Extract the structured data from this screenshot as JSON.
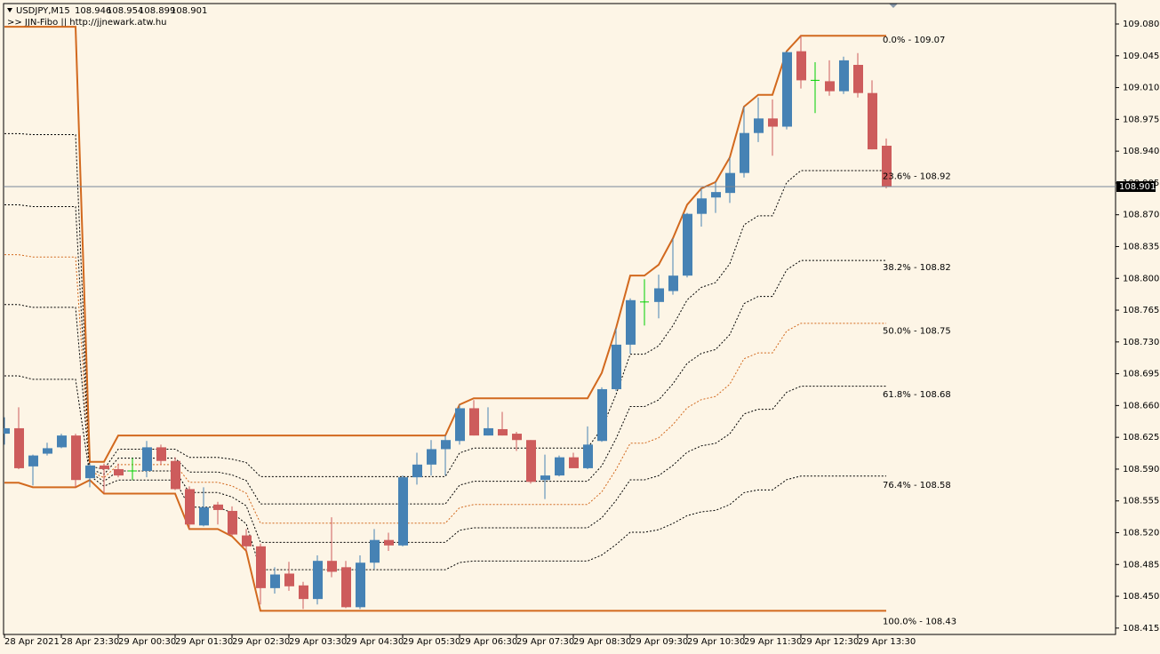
{
  "chart_data": {
    "type": "candlestick",
    "title": "USDJPY,M15",
    "subtitle": ">> JJN-Fibo || http://jjnewark.atw.hu",
    "categories": [
      "28 Apr 2021",
      null,
      null,
      null,
      "28 Apr 23:30",
      null,
      null,
      null,
      "29 Apr 00:30",
      null,
      null,
      null,
      "29 Apr 01:30",
      null,
      null,
      null,
      "29 Apr 02:30",
      null,
      null,
      null,
      "29 Apr 03:30",
      null,
      null,
      null,
      "29 Apr 04:30",
      null,
      null,
      null,
      "29 Apr 05:30",
      null,
      null,
      null,
      "29 Apr 06:30",
      null,
      null,
      null,
      "29 Apr 07:30",
      null,
      null,
      null,
      "29 Apr 08:30",
      null,
      null,
      null,
      "29 Apr 09:30",
      null,
      null,
      null,
      "29 Apr 10:30",
      null,
      null,
      null,
      "29 Apr 11:30",
      null,
      null,
      null,
      "29 Apr 12:30",
      null,
      null,
      null,
      "29 Apr 13:30",
      null,
      null
    ],
    "open": [
      108.629,
      108.635,
      108.593,
      108.607,
      108.614,
      108.627,
      108.58,
      108.594,
      108.59,
      108.588,
      108.588,
      108.614,
      108.599,
      108.568,
      108.528,
      108.551,
      108.544,
      108.517,
      108.505,
      108.459,
      108.475,
      108.462,
      108.447,
      108.489,
      108.482,
      108.438,
      108.487,
      108.512,
      108.506,
      108.581,
      108.595,
      108.612,
      108.621,
      108.657,
      108.627,
      108.634,
      108.629,
      108.622,
      108.578,
      108.583,
      108.603,
      108.591,
      108.621,
      108.678,
      108.727,
      108.774,
      108.774,
      108.786,
      108.803,
      108.871,
      108.889,
      108.894,
      108.916,
      108.96,
      108.976,
      108.967,
      109.05,
      109.018,
      109.017,
      109.006,
      109.035,
      109.004,
      108.946
    ],
    "high": [
      108.647,
      108.658,
      108.606,
      108.619,
      108.629,
      108.629,
      108.596,
      108.596,
      108.596,
      108.602,
      108.621,
      108.617,
      108.603,
      108.571,
      108.57,
      108.554,
      108.549,
      108.524,
      108.508,
      108.482,
      108.488,
      108.466,
      108.495,
      108.537,
      108.489,
      108.495,
      108.524,
      108.52,
      108.583,
      108.608,
      108.622,
      108.627,
      108.661,
      108.666,
      108.658,
      108.653,
      108.631,
      108.622,
      108.606,
      108.605,
      108.608,
      108.637,
      108.68,
      108.745,
      108.778,
      108.799,
      108.804,
      108.844,
      108.872,
      108.899,
      108.906,
      108.933,
      108.989,
      108.999,
      108.997,
      109.05,
      109.067,
      109.038,
      109.04,
      109.044,
      109.048,
      109.018,
      108.954
    ],
    "low": [
      108.617,
      108.59,
      108.572,
      108.605,
      108.613,
      108.57,
      108.57,
      108.564,
      108.581,
      108.578,
      108.581,
      108.595,
      108.567,
      108.524,
      108.527,
      108.529,
      108.516,
      108.5,
      108.441,
      108.453,
      108.456,
      108.436,
      108.441,
      108.471,
      108.437,
      108.436,
      108.48,
      108.5,
      108.505,
      108.573,
      108.583,
      108.583,
      108.617,
      108.627,
      108.627,
      108.627,
      108.61,
      108.574,
      108.557,
      108.582,
      108.595,
      108.59,
      108.62,
      108.676,
      108.717,
      108.748,
      108.756,
      108.782,
      108.801,
      108.857,
      108.872,
      108.883,
      108.911,
      108.95,
      108.935,
      108.964,
      109.009,
      108.982,
      109.001,
      109.003,
      108.999,
      108.942,
      108.899
    ],
    "close": [
      108.635,
      108.591,
      108.605,
      108.613,
      108.627,
      108.578,
      108.594,
      108.59,
      108.583,
      108.588,
      108.614,
      108.599,
      108.568,
      108.529,
      108.548,
      108.545,
      108.518,
      108.505,
      108.459,
      108.474,
      108.461,
      108.447,
      108.489,
      108.477,
      108.438,
      108.487,
      108.512,
      108.506,
      108.581,
      108.595,
      108.612,
      108.622,
      108.657,
      108.627,
      108.635,
      108.627,
      108.622,
      108.576,
      108.583,
      108.603,
      108.591,
      108.617,
      108.678,
      108.727,
      108.776,
      108.774,
      108.789,
      108.803,
      108.871,
      108.888,
      108.895,
      108.916,
      108.96,
      108.976,
      108.967,
      109.049,
      109.018,
      109.018,
      109.006,
      109.04,
      109.004,
      108.942,
      108.901
    ],
    "upper": [
      109.077,
      109.077,
      109.077,
      109.077,
      109.077,
      109.077,
      108.598,
      108.598,
      108.627,
      108.627,
      108.627,
      108.627,
      108.627,
      108.627,
      108.627,
      108.627,
      108.627,
      108.627,
      108.627,
      108.627,
      108.627,
      108.627,
      108.627,
      108.627,
      108.627,
      108.627,
      108.627,
      108.627,
      108.627,
      108.627,
      108.627,
      108.627,
      108.661,
      108.668,
      108.668,
      108.668,
      108.668,
      108.668,
      108.668,
      108.668,
      108.668,
      108.668,
      108.696,
      108.745,
      108.803,
      108.803,
      108.815,
      108.844,
      108.881,
      108.899,
      108.906,
      108.933,
      108.989,
      109.002,
      109.002,
      109.05,
      109.067,
      109.067,
      109.067,
      109.067,
      109.067,
      109.067,
      109.067
    ],
    "lower": [
      108.575,
      108.575,
      108.57,
      108.57,
      108.57,
      108.57,
      108.578,
      108.563,
      108.563,
      108.563,
      108.563,
      108.563,
      108.563,
      108.524,
      108.524,
      108.524,
      108.516,
      108.5,
      108.434,
      108.434,
      108.434,
      108.434,
      108.434,
      108.434,
      108.434,
      108.434,
      108.434,
      108.434,
      108.434,
      108.434,
      108.434,
      108.434,
      108.434,
      108.434,
      108.434,
      108.434,
      108.434,
      108.434,
      108.434,
      108.434,
      108.434,
      108.434,
      108.434,
      108.434,
      108.434,
      108.434,
      108.434,
      108.434,
      108.434,
      108.434,
      108.434,
      108.434,
      108.434,
      108.434,
      108.434,
      108.434,
      108.434,
      108.434,
      108.434,
      108.434,
      108.434,
      108.434,
      108.434
    ],
    "up_color": "#4682b4",
    "down_color": "#cd5c5c",
    "doji_color": "#00d000",
    "envelope_color": "#d2691e",
    "bid_line_color": "#778899",
    "fib_levels": [
      {
        "label": "0.0% - 109.07",
        "value": 109.07,
        "color": "#000000"
      },
      {
        "label": "23.6% - 108.92",
        "value": 108.92,
        "color": "#000000"
      },
      {
        "label": "38.2% - 108.82",
        "value": 108.82,
        "color": "#000000"
      },
      {
        "label": "50.0% - 108.75",
        "value": 108.75,
        "color": "#d2691e"
      },
      {
        "label": "61.8% - 108.68",
        "value": 108.68,
        "color": "#000000"
      },
      {
        "label": "76.4% - 108.58",
        "value": 108.58,
        "color": "#000000"
      },
      {
        "label": "100.0% - 108.43",
        "value": 108.43,
        "color": "#000000"
      }
    ],
    "ylim": [
      108.408,
      109.1025
    ],
    "yticks": [
      {
        "value": 109.08,
        "label": "109.080"
      },
      109.045,
      {
        "value": 109.01,
        "label": "109.010"
      },
      108.975,
      {
        "value": 108.94,
        "label": "108.940"
      },
      108.905,
      {
        "value": 108.87,
        "label": "108.870"
      },
      108.835,
      {
        "value": 108.8,
        "label": "108.800"
      },
      108.765,
      {
        "value": 108.73,
        "label": "108.730"
      },
      108.695,
      {
        "value": 108.66,
        "label": "108.660"
      },
      108.625,
      {
        "value": 108.59,
        "label": "108.590"
      },
      108.555,
      {
        "value": 108.52,
        "label": "108.520"
      },
      108.485,
      {
        "value": 108.45,
        "label": "108.450"
      },
      108.415
    ]
  }
}
